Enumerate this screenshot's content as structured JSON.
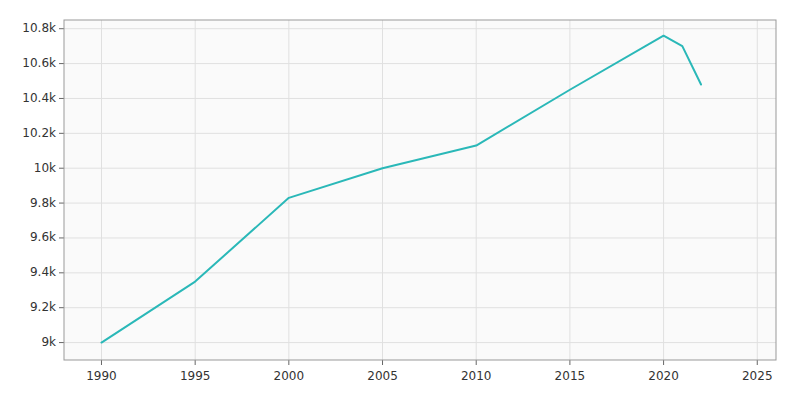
{
  "chart_data": {
    "type": "line",
    "x": [
      1990,
      1995,
      2000,
      2005,
      2010,
      2015,
      2020,
      2021,
      2022
    ],
    "values": [
      9000,
      9350,
      9830,
      10000,
      10130,
      10450,
      10760,
      10700,
      10480
    ],
    "color": "#2ab8b8",
    "xlim": [
      1988,
      2026
    ],
    "xticks": [
      1990,
      1995,
      2000,
      2005,
      2010,
      2015,
      2020,
      2025
    ],
    "ylim": [
      8900,
      10850
    ],
    "yticks": [
      {
        "value": 9000,
        "label": "9k"
      },
      {
        "value": 9200,
        "label": "9.2k"
      },
      {
        "value": 9400,
        "label": "9.4k"
      },
      {
        "value": 9600,
        "label": "9.6k"
      },
      {
        "value": 9800,
        "label": "9.8k"
      },
      {
        "value": 10000,
        "label": "10k"
      },
      {
        "value": 10200,
        "label": "10.2k"
      },
      {
        "value": 10400,
        "label": "10.4k"
      },
      {
        "value": 10600,
        "label": "10.6k"
      },
      {
        "value": 10800,
        "label": "10.8k"
      }
    ],
    "grid": true
  }
}
